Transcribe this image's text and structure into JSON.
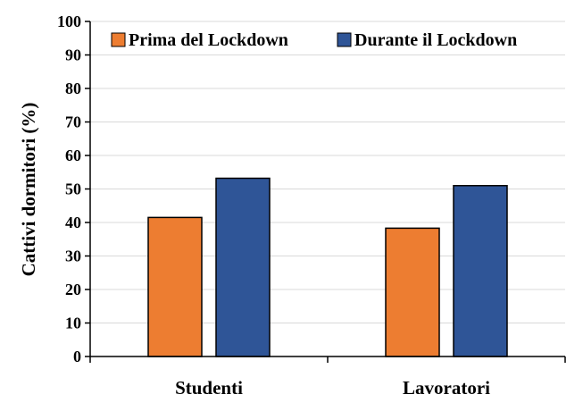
{
  "chart_data": {
    "type": "bar",
    "categories": [
      "Studenti",
      "Lavoratori"
    ],
    "series": [
      {
        "name": "Prima del Lockdown",
        "values": [
          41.5,
          38.3
        ],
        "color": "#ED7D31"
      },
      {
        "name": "Durante il Lockdown",
        "values": [
          53.2,
          51.0
        ],
        "color": "#2F5597"
      }
    ],
    "title": "",
    "xlabel": "",
    "ylabel": "Cattivi dormitori  (%)",
    "ylim": [
      0,
      100
    ],
    "yticks": [
      0,
      10,
      20,
      30,
      40,
      50,
      60,
      70,
      80,
      90,
      100
    ],
    "grid": true,
    "legend_position": "top-right"
  }
}
